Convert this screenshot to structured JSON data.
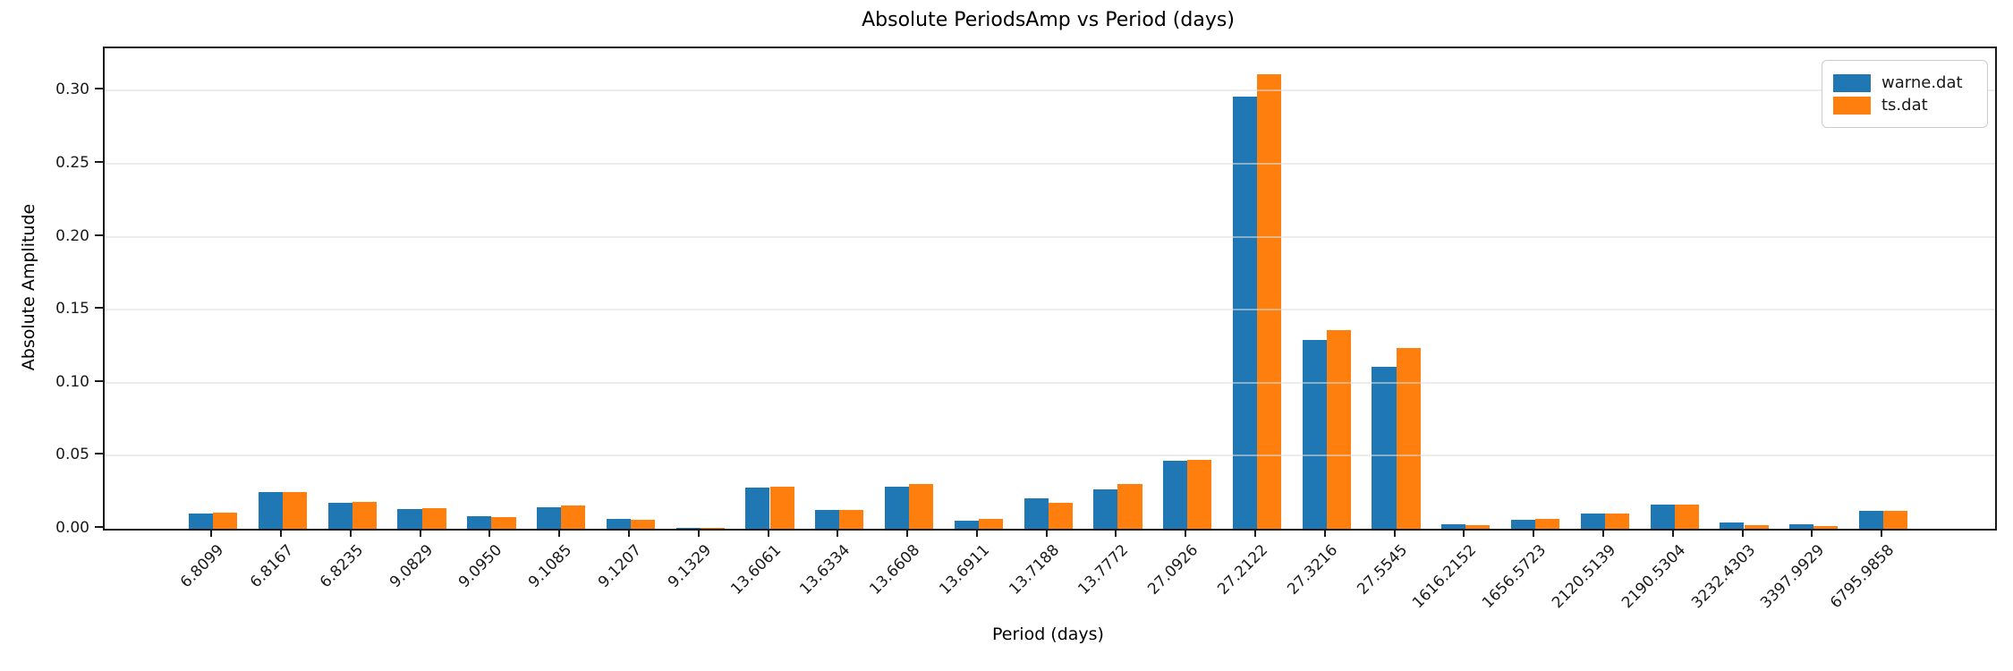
{
  "chart_data": {
    "type": "bar",
    "title": "Absolute PeriodsAmp vs Period (days)",
    "xlabel": "Period (days)",
    "ylabel": "Absolute Amplitude",
    "categories": [
      "6.8099",
      "6.8167",
      "6.8235",
      "9.0829",
      "9.0950",
      "9.1085",
      "9.1207",
      "9.1329",
      "13.6061",
      "13.6334",
      "13.6608",
      "13.6911",
      "13.7188",
      "13.7772",
      "27.0926",
      "27.2122",
      "27.3216",
      "27.5545",
      "1616.2152",
      "1656.5723",
      "2120.5139",
      "2190.5304",
      "3232.4303",
      "3397.9929",
      "6795.9858"
    ],
    "series": [
      {
        "name": "warne.dat",
        "color": "#1f77b4",
        "values": [
          0.0105,
          0.0251,
          0.018,
          0.0138,
          0.0087,
          0.0148,
          0.007,
          0.0004,
          0.028,
          0.0128,
          0.0286,
          0.0056,
          0.0206,
          0.0272,
          0.0467,
          0.296,
          0.129,
          0.111,
          0.0029,
          0.006,
          0.0105,
          0.0167,
          0.0043,
          0.0031,
          0.0122
        ]
      },
      {
        "name": "ts.dat",
        "color": "#ff7f0e",
        "values": [
          0.0113,
          0.0252,
          0.0185,
          0.0142,
          0.0078,
          0.0158,
          0.0062,
          0.0004,
          0.0286,
          0.0128,
          0.0307,
          0.0068,
          0.0179,
          0.0307,
          0.0473,
          0.311,
          0.136,
          0.124,
          0.0023,
          0.0066,
          0.0107,
          0.0167,
          0.0027,
          0.0019,
          0.0122
        ]
      }
    ],
    "yticks": [
      "0.00",
      "0.05",
      "0.10",
      "0.15",
      "0.20",
      "0.25",
      "0.30"
    ],
    "ylim": [
      0,
      0.329
    ],
    "grid": true,
    "grid_axis": "y",
    "legend_position": "upper right"
  }
}
